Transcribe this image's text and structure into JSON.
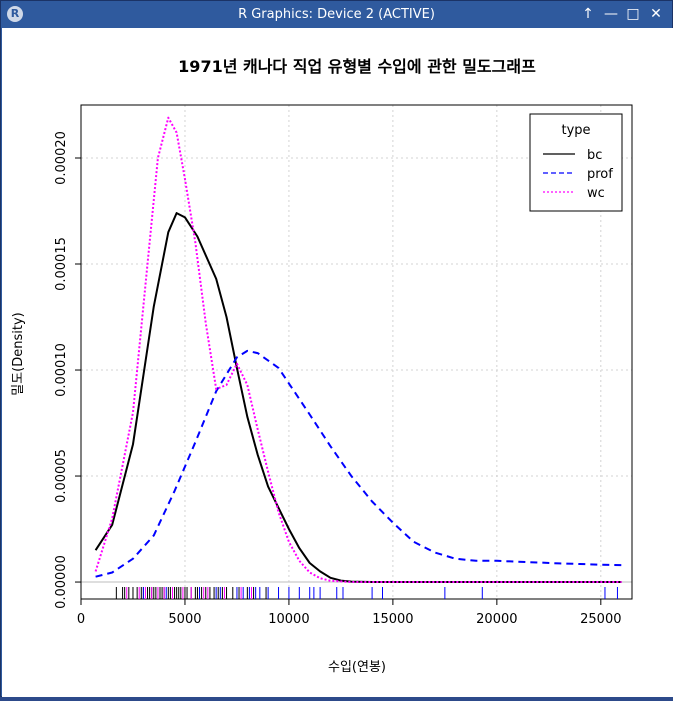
{
  "window": {
    "title": "R Graphics: Device 2 (ACTIVE)",
    "controls": [
      "↑",
      "—",
      "□",
      "✕"
    ]
  },
  "chart_data": {
    "type": "line",
    "title": "1971년 캐나다 직업 유형별 수입에 관한 밀도그래프",
    "xlabel": "수입(연봉)",
    "ylabel": "밀도(Density)",
    "xlim": [
      0,
      26500
    ],
    "ylim": [
      -8e-06,
      0.000225
    ],
    "xticks": [
      0,
      5000,
      10000,
      15000,
      20000,
      25000
    ],
    "yticks": [
      0.0,
      5e-05,
      0.0001,
      0.00015,
      0.0002
    ],
    "ytick_labels": [
      "0.00000",
      "0.00005",
      "0.00010",
      "0.00015",
      "0.00020"
    ],
    "grid": true,
    "legend": {
      "title": "type",
      "position": "top-right",
      "entries": [
        "bc",
        "prof",
        "wc"
      ]
    },
    "colors": {
      "bc": "#000000",
      "prof": "#0000ff",
      "wc": "#ff00ff"
    },
    "series": [
      {
        "name": "bc",
        "line_style": "solid",
        "points": [
          [
            700,
            1.5e-05
          ],
          [
            1500,
            2.7e-05
          ],
          [
            2500,
            6.5e-05
          ],
          [
            3500,
            0.00013
          ],
          [
            4200,
            0.000165
          ],
          [
            4600,
            0.000174
          ],
          [
            5000,
            0.000172
          ],
          [
            5600,
            0.000163
          ],
          [
            6500,
            0.000143
          ],
          [
            7000,
            0.000125
          ],
          [
            7500,
            0.000101
          ],
          [
            8000,
            7.8e-05
          ],
          [
            8500,
            6e-05
          ],
          [
            9000,
            4.5e-05
          ],
          [
            9500,
            3.5e-05
          ],
          [
            10000,
            2.5e-05
          ],
          [
            10500,
            1.6e-05
          ],
          [
            11000,
            9e-06
          ],
          [
            11500,
            5e-06
          ],
          [
            12000,
            2e-06
          ],
          [
            12500,
            7e-07
          ],
          [
            13000,
            2e-07
          ],
          [
            14000,
            0.0
          ],
          [
            26000,
            0.0
          ]
        ]
      },
      {
        "name": "prof",
        "line_style": "dashed",
        "points": [
          [
            700,
            2.5e-06
          ],
          [
            1500,
            4.5e-06
          ],
          [
            2500,
            1.1e-05
          ],
          [
            3500,
            2.2e-05
          ],
          [
            4500,
            4.3e-05
          ],
          [
            5500,
            6.6e-05
          ],
          [
            6500,
            9e-05
          ],
          [
            7500,
            0.000106
          ],
          [
            8000,
            0.000109
          ],
          [
            8500,
            0.000108
          ],
          [
            9500,
            0.000101
          ],
          [
            11000,
            7.9e-05
          ],
          [
            12000,
            6.4e-05
          ],
          [
            13000,
            5e-05
          ],
          [
            14000,
            3.8e-05
          ],
          [
            15000,
            2.8e-05
          ],
          [
            16000,
            1.9e-05
          ],
          [
            17000,
            1.4e-05
          ],
          [
            18000,
            1.1e-05
          ],
          [
            19000,
            1e-05
          ],
          [
            20000,
            1e-05
          ],
          [
            21000,
            9.6e-06
          ],
          [
            22000,
            9.2e-06
          ],
          [
            23000,
            8.8e-06
          ],
          [
            24000,
            8.5e-06
          ],
          [
            25000,
            8.2e-06
          ],
          [
            26000,
            8e-06
          ]
        ]
      },
      {
        "name": "wc",
        "line_style": "dotted",
        "points": [
          [
            700,
            5e-06
          ],
          [
            1500,
            3e-05
          ],
          [
            2500,
            8e-05
          ],
          [
            3200,
            0.00015
          ],
          [
            3700,
            0.0002
          ],
          [
            4200,
            0.000219
          ],
          [
            4600,
            0.000212
          ],
          [
            5000,
            0.00019
          ],
          [
            5500,
            0.00016
          ],
          [
            6000,
            0.000122
          ],
          [
            6500,
            9.1e-05
          ],
          [
            7000,
            9.3e-05
          ],
          [
            7500,
            0.000103
          ],
          [
            8000,
            9.3e-05
          ],
          [
            8500,
            7.2e-05
          ],
          [
            9000,
            5.2e-05
          ],
          [
            9500,
            3.3e-05
          ],
          [
            10000,
            1.9e-05
          ],
          [
            10500,
            1e-05
          ],
          [
            11000,
            4.5e-06
          ],
          [
            11500,
            1.8e-06
          ],
          [
            12000,
            6e-07
          ],
          [
            13000,
            0.0
          ],
          [
            26000,
            0.0
          ]
        ]
      }
    ],
    "rug": {
      "bc": [
        1700,
        2000,
        2100,
        2300,
        2500,
        2700,
        2900,
        3000,
        3200,
        3300,
        3400,
        3500,
        3600,
        3800,
        3900,
        4000,
        4200,
        4300,
        4500,
        4600,
        4700,
        4800,
        5000,
        5100,
        5300,
        5500,
        5600,
        5800,
        6000,
        6200,
        6400,
        6600,
        6800,
        7000,
        7300,
        7600,
        8000,
        8300,
        8900
      ],
      "prof": [
        3000,
        4100,
        5700,
        6500,
        6700,
        7500,
        7800,
        8100,
        8400,
        8600,
        9000,
        9500,
        10000,
        10500,
        11000,
        11200,
        11500,
        12300,
        12600,
        14000,
        14500,
        17500,
        19300,
        25200,
        25800
      ],
      "wc": [
        2200,
        2800,
        3100,
        3400,
        3700,
        4000,
        4400,
        4900,
        5300,
        5900,
        6100,
        6900,
        7700,
        8200
      ]
    }
  }
}
